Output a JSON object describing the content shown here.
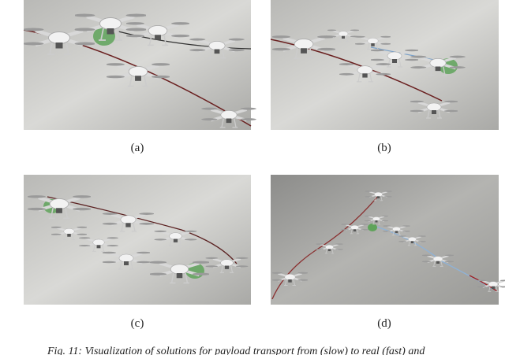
{
  "panels": [
    {
      "label": "(a)"
    },
    {
      "label": "(b)"
    },
    {
      "label": "(c)"
    },
    {
      "label": "(d)"
    }
  ],
  "caption": "Fig. 11: Visualization of solutions for payload transport from (slow) to real (fast) and"
}
